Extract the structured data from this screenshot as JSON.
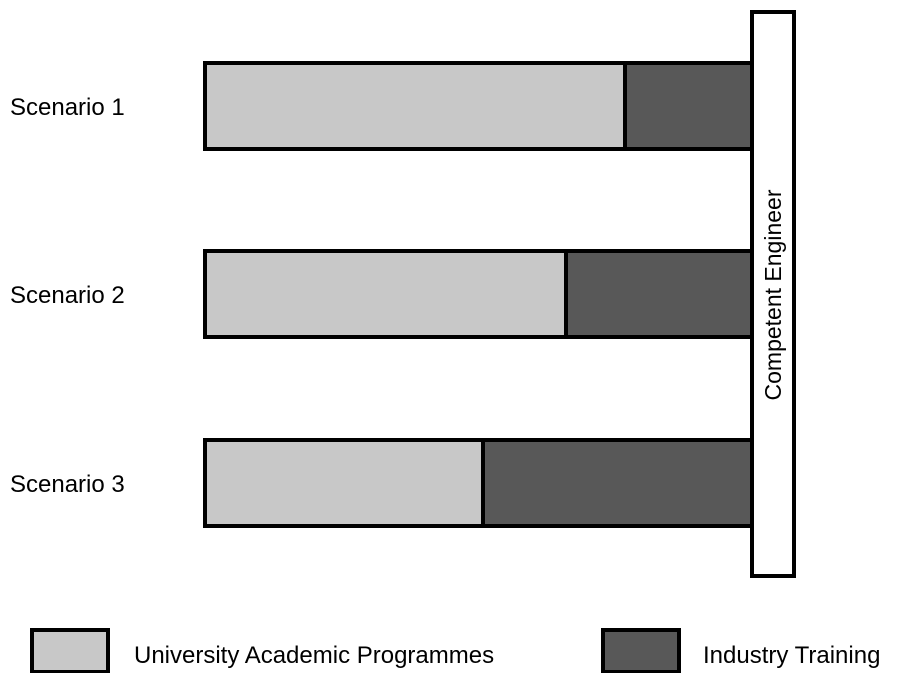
{
  "colors": {
    "academic": "#c8c8c8",
    "industry": "#585858",
    "outline": "#000000",
    "goal_box": "#ffffff"
  },
  "scenarios": [
    {
      "label": "Scenario 1",
      "academic_fraction": 0.767
    },
    {
      "label": "Scenario 2",
      "academic_fraction": 0.66
    },
    {
      "label": "Scenario 3",
      "academic_fraction": 0.509
    }
  ],
  "goal": {
    "label": "Competent Engineer"
  },
  "legend": {
    "academic_label": "University Academic Programmes",
    "industry_label": "Industry Training"
  }
}
